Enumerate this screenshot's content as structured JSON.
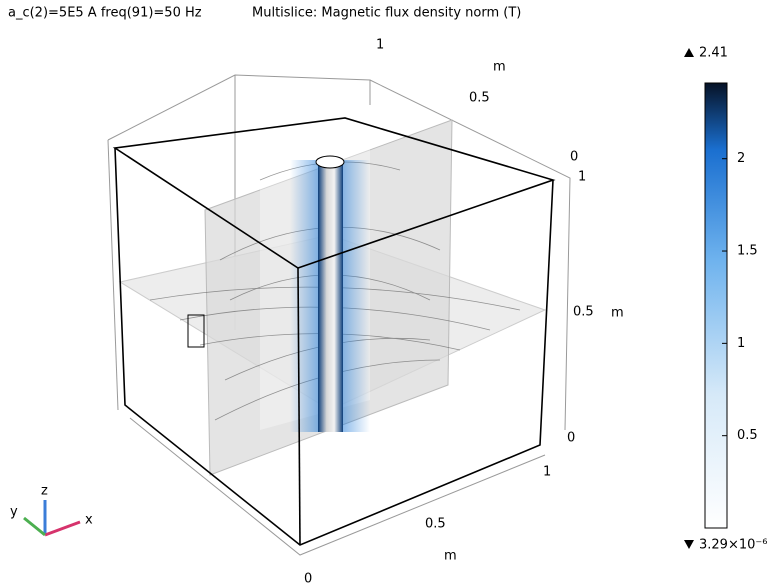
{
  "header": {
    "expression": "a_c(2)=5E5 A freq(91)=50 Hz",
    "title": "Multislice: Magnetic flux density norm (T)"
  },
  "axes": {
    "labels": [
      "1",
      "m",
      "0.5",
      "0",
      "1",
      "0.5",
      "m",
      "0",
      "1",
      "0.5",
      "m",
      "0"
    ]
  },
  "triad": [
    "z",
    "y",
    "x"
  ],
  "colorbar": {
    "max": 2.41,
    "min": {
      "value": 3.29e-06,
      "label": "3.29×10⁻⁶"
    },
    "ticks": [
      0.5,
      1,
      1.5,
      2
    ]
  }
}
